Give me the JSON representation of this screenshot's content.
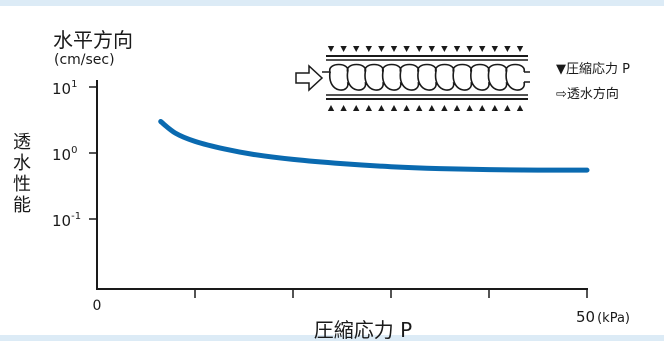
{
  "chart_data": {
    "type": "line",
    "y_title": "水平方向",
    "y_unit": "(cm/sec)",
    "y_axis_label_chars": [
      "透",
      "水",
      "性",
      "能"
    ],
    "x_label": "圧縮応力 P",
    "x_tick_labels": {
      "start": "0",
      "end": "50",
      "end_unit": "(kPa)"
    },
    "x_range": [
      0,
      50
    ],
    "y_scale": "log",
    "y_tick_labels": [
      {
        "base": "10",
        "exp": "1",
        "value": 10
      },
      {
        "base": "10",
        "exp": "0",
        "value": 1
      },
      {
        "base": "10",
        "exp": "-1",
        "value": 0.1
      }
    ],
    "ylim": [
      0.01,
      10
    ],
    "series": [
      {
        "color": "#0a6ab0",
        "x": [
          6.5,
          8,
          10,
          13,
          16,
          20,
          25,
          30,
          35,
          40,
          45,
          50
        ],
        "y": [
          3.0,
          2.0,
          1.5,
          1.15,
          0.95,
          0.8,
          0.69,
          0.62,
          0.58,
          0.56,
          0.55,
          0.55
        ]
      }
    ]
  },
  "legend": {
    "pressure": "▼圧縮応力 P",
    "flow": "⇨透水方向"
  },
  "colors": {
    "accent": "#0a6ab0",
    "band": "#dcebf6"
  }
}
